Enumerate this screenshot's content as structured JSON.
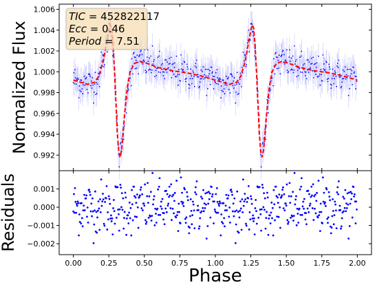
{
  "chart_data": [
    {
      "panel": "top",
      "type": "scatter",
      "ylabel": "Normalized Flux",
      "xlim": [
        -0.1,
        2.1
      ],
      "ylim": [
        0.9905,
        1.0065
      ],
      "yticks": [
        0.992,
        0.994,
        0.996,
        0.998,
        1.0,
        1.002,
        1.004,
        1.006
      ],
      "ytick_labels": [
        "0.992",
        "0.994",
        "0.996",
        "0.998",
        "1.000",
        "1.002",
        "1.004",
        "1.006"
      ],
      "annotation": {
        "lines": [
          {
            "label": "TIC",
            "value": "452822117"
          },
          {
            "label": "Ecc",
            "value": "0.46"
          },
          {
            "label": "Period",
            "value": "7.51"
          }
        ],
        "box_color": "#f5deb3"
      },
      "model_curve": {
        "color": "#ff0000",
        "style": "dashed",
        "x": [
          0.0,
          0.05,
          0.1,
          0.15,
          0.18,
          0.21,
          0.23,
          0.25,
          0.26,
          0.27,
          0.28,
          0.29,
          0.3,
          0.31,
          0.32,
          0.33,
          0.34,
          0.35,
          0.36,
          0.38,
          0.4,
          0.43,
          0.47,
          0.52,
          0.6,
          0.7,
          0.8,
          0.9,
          0.95,
          1.0
        ],
        "y": [
          0.9992,
          0.999,
          0.9988,
          0.999,
          0.9996,
          1.001,
          1.0025,
          1.004,
          1.0045,
          1.0042,
          1.0025,
          1.0,
          0.997,
          0.994,
          0.9923,
          0.9918,
          0.9925,
          0.994,
          0.9958,
          0.9985,
          1.0,
          1.0008,
          1.001,
          1.0008,
          1.0004,
          1.0001,
          0.9999,
          0.9996,
          0.9994,
          0.9992
        ]
      },
      "data_points": {
        "color": "#0000ff",
        "note": "observed flux with error bars, phase-folded and repeated over two cycles"
      }
    },
    {
      "panel": "bottom",
      "type": "scatter",
      "xlabel": "Phase",
      "ylabel": "Residuals",
      "xlim": [
        -0.1,
        2.1
      ],
      "ylim": [
        -0.0026,
        0.002
      ],
      "xticks": [
        0.0,
        0.25,
        0.5,
        0.75,
        1.0,
        1.25,
        1.5,
        1.75,
        2.0
      ],
      "xtick_labels": [
        "0.00",
        "0.25",
        "0.50",
        "0.75",
        "1.00",
        "1.25",
        "1.50",
        "1.75",
        "2.00"
      ],
      "yticks": [
        -0.002,
        -0.001,
        0.0,
        0.001
      ],
      "ytick_labels": [
        "−0.002",
        "−0.001",
        "0.000",
        "0.001"
      ],
      "points_color": "#0000ff"
    }
  ]
}
